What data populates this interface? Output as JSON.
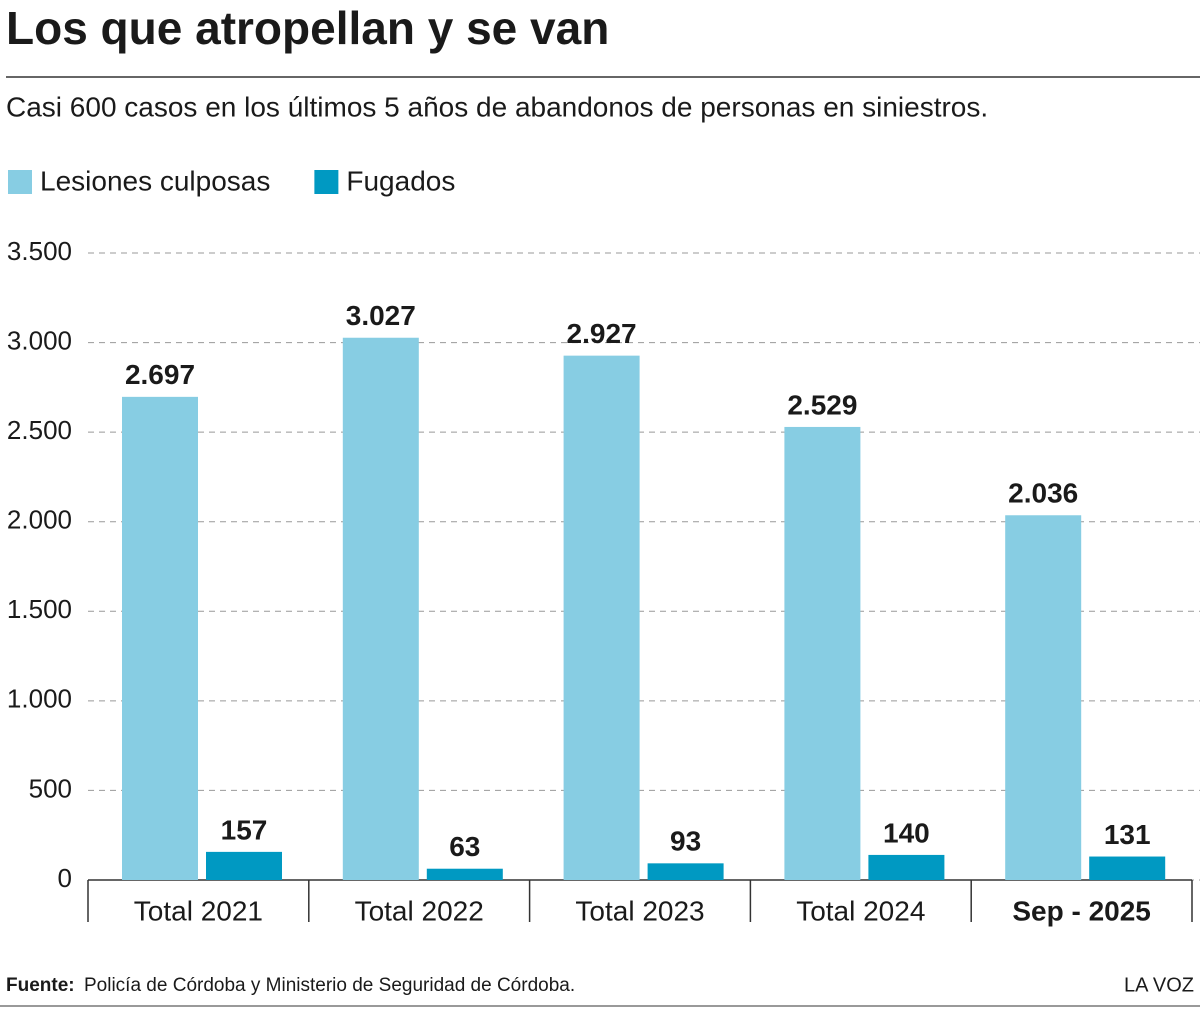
{
  "chart_data": {
    "type": "bar",
    "title": "Los que atropellan y se van",
    "subtitle": "Casi 600 casos en los últimos 5 años de abandonos de personas en siniestros.",
    "categories": [
      "Total 2021",
      "Total 2022",
      "Total 2023",
      "Total 2024",
      "Sep - 2025"
    ],
    "series": [
      {
        "name": "Lesiones culposas",
        "color": "#87cde3",
        "values": [
          2697,
          3027,
          2927,
          2529,
          2036
        ],
        "value_labels": [
          "2.697",
          "3.027",
          "2.927",
          "2.529",
          "2.036"
        ]
      },
      {
        "name": "Fugados",
        "color": "#0099c2",
        "values": [
          157,
          63,
          93,
          140,
          131
        ]
      }
    ],
    "ylim": [
      0,
      3500
    ],
    "yticks": [
      0,
      500,
      {
        "value": 1000,
        "label": "1.000"
      },
      {
        "value": 1500,
        "label": "1.500"
      },
      {
        "value": 2000,
        "label": "2.000"
      },
      {
        "value": 2500,
        "label": "2.500"
      },
      {
        "value": 3000,
        "label": "3.000"
      },
      {
        "value": 3500,
        "label": "3.500"
      }
    ],
    "grid": true,
    "source_label": "Fuente:",
    "source": "Policía de Córdoba y Ministerio de Seguridad de Córdoba.",
    "brand": "LA VOZ"
  }
}
